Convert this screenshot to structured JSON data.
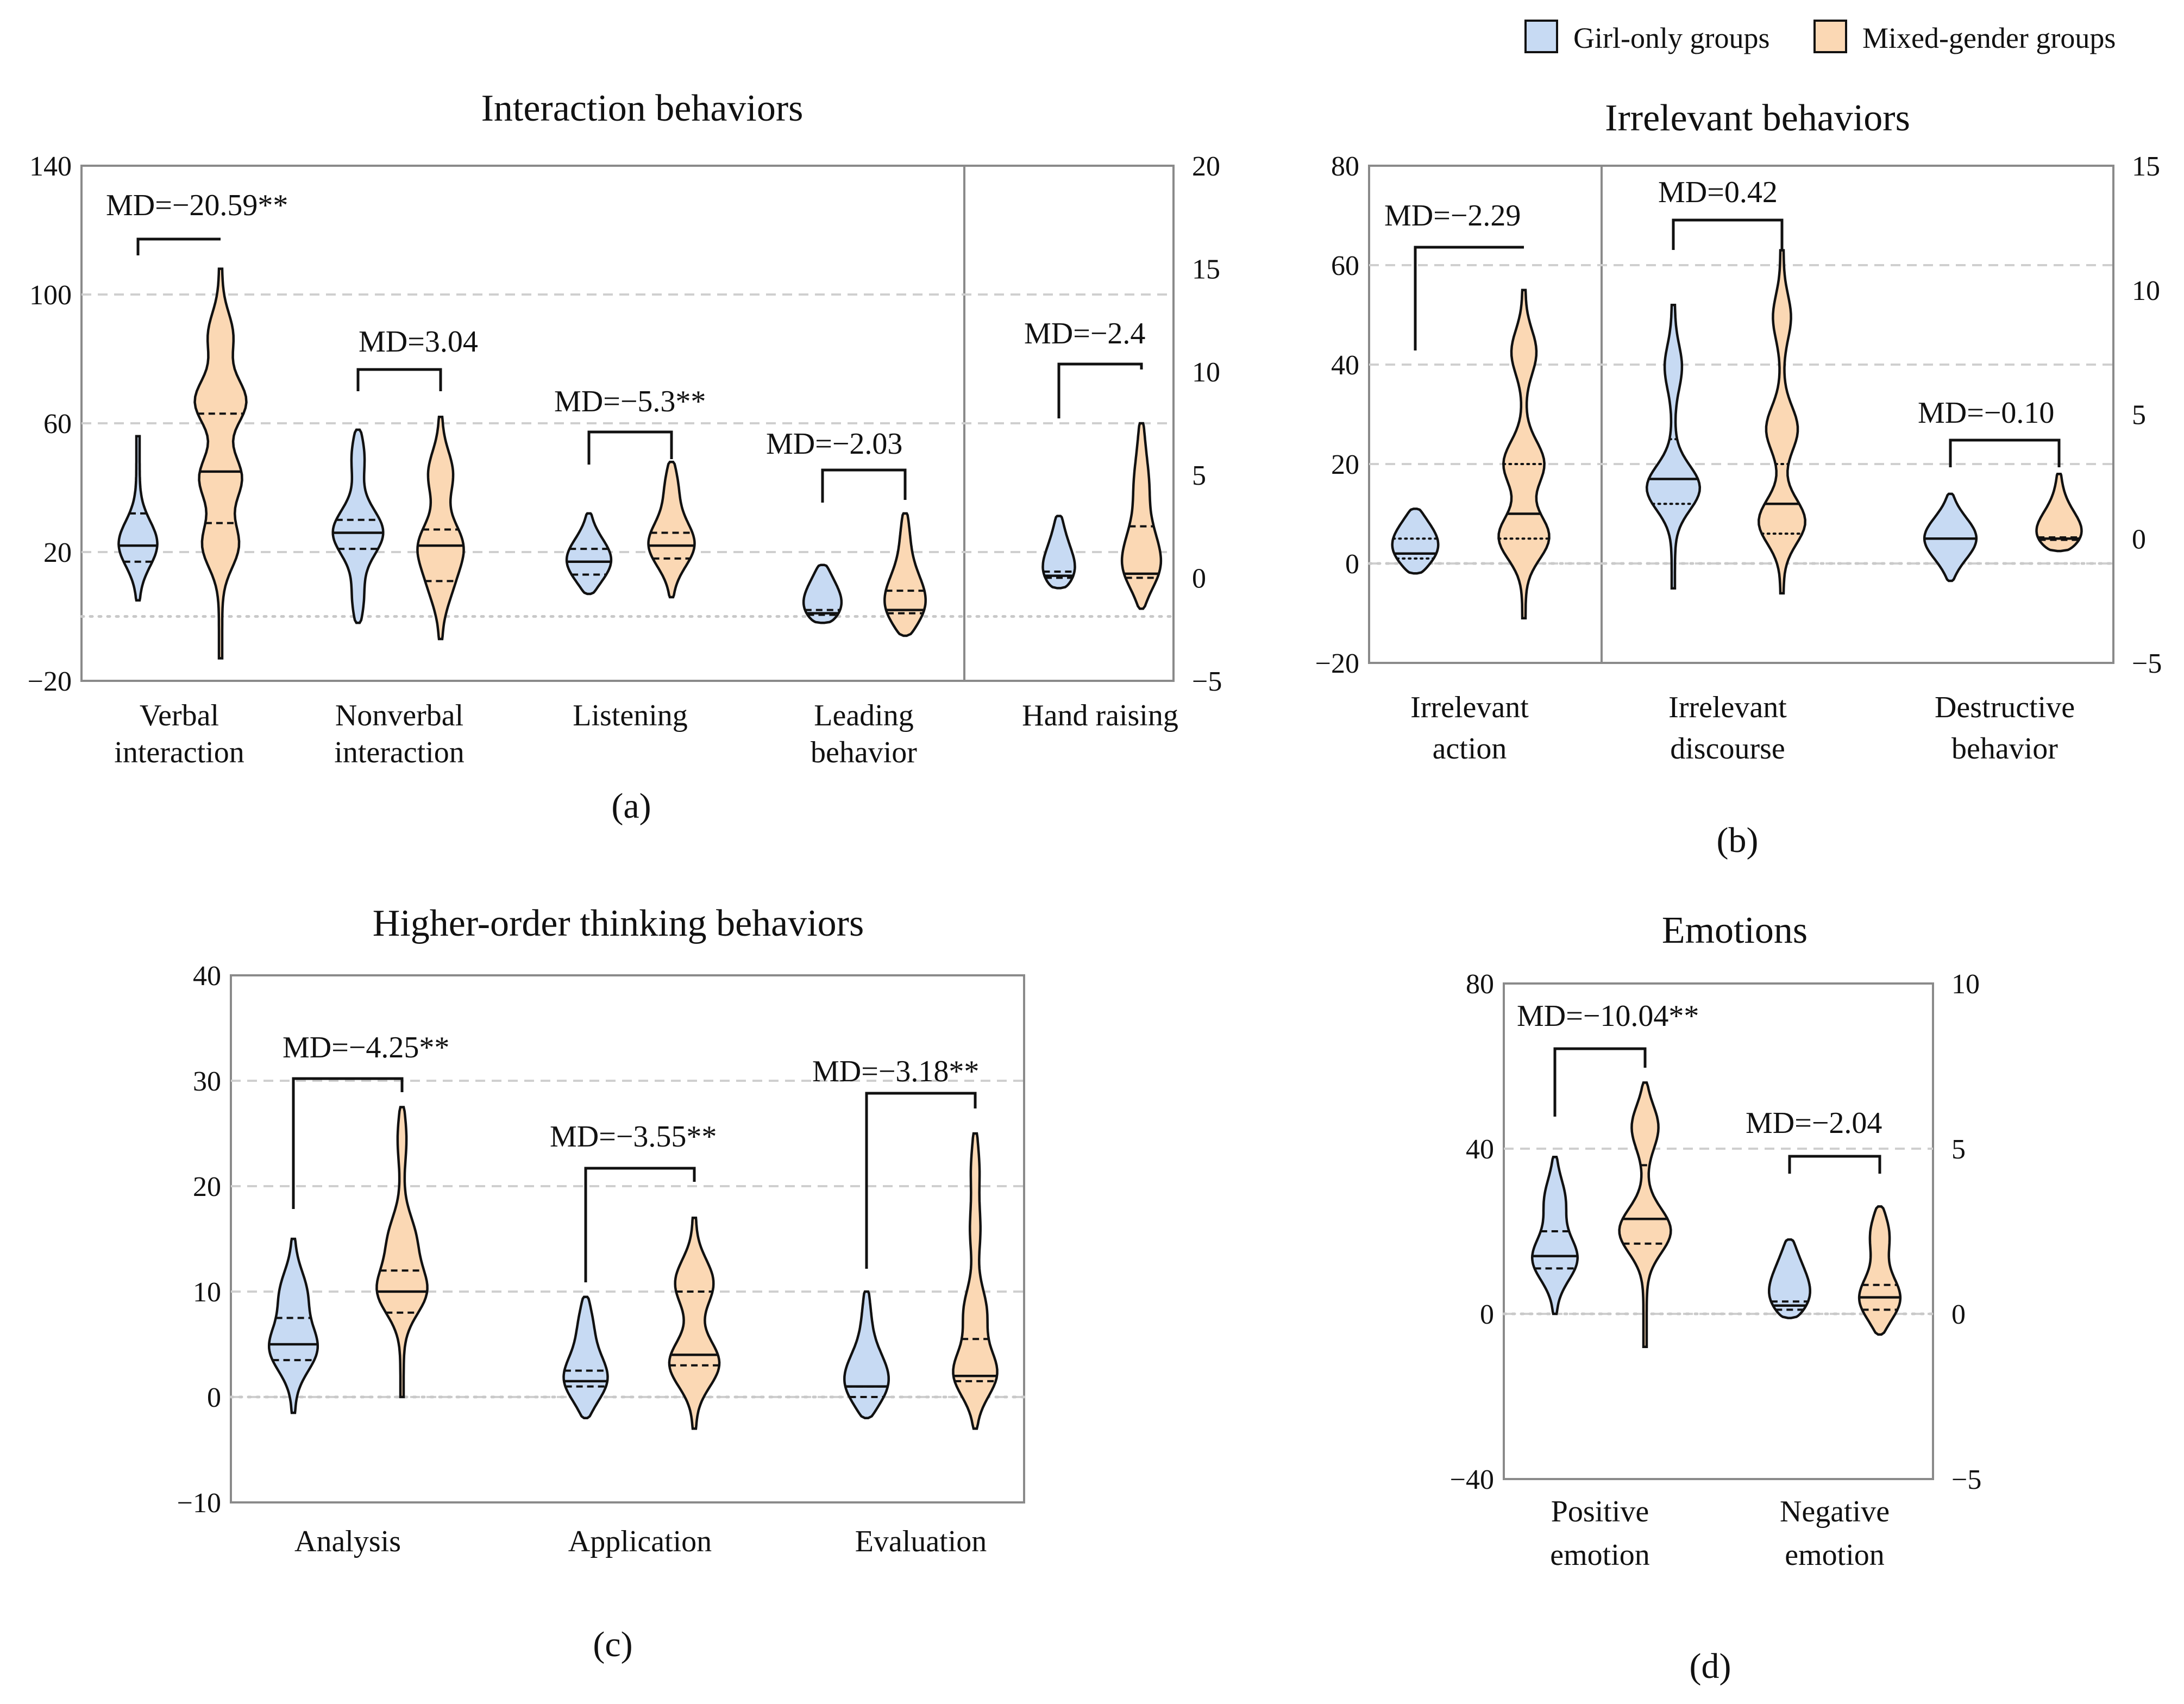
{
  "legend": {
    "girl": "Girl-only groups",
    "mixed": "Mixed-gender groups"
  },
  "colors": {
    "girl": "#c7daf3",
    "mixed": "#fbd8b4",
    "edge": "#111111"
  },
  "panel_labels": {
    "a": "(a)",
    "b": "(b)",
    "c": "(c)",
    "d": "(d)"
  },
  "chart_data": [
    {
      "id": "a",
      "type": "violin",
      "title": "Interaction behaviors",
      "ylim_left": [
        -20,
        140
      ],
      "yticks_left": [
        -20,
        20,
        60,
        100,
        140
      ],
      "ylim_right": [
        -5,
        20
      ],
      "yticks_right": [
        -5,
        0,
        5,
        10,
        15,
        20
      ],
      "categories": [
        {
          "label": [
            "Verbal",
            "interaction"
          ],
          "md": "MD=−20.59**",
          "axis": "left",
          "girl": {
            "min": 5,
            "max": 56,
            "median": 22,
            "q1": 17,
            "q3": 32,
            "qstyle": "dash",
            "bulges": [
              [
                22,
                1
              ]
            ],
            "width": 0.55
          },
          "mixed": {
            "min": -13,
            "max": 108,
            "median": 45,
            "q1": 29,
            "q3": 63,
            "qstyle": "dash",
            "bulges": [
              [
                22,
                0.72
              ],
              [
                43,
                0.78
              ],
              [
                67,
                1
              ],
              [
                88,
                0.55
              ]
            ],
            "width": 0.75
          }
        },
        {
          "label": [
            "Nonverbal",
            "interaction"
          ],
          "md": "MD=3.04",
          "axis": "left",
          "girl": {
            "min": -2,
            "max": 58,
            "median": 26,
            "q1": 21,
            "q3": 30,
            "qstyle": "dash",
            "bulges": [
              [
                4,
                0.25
              ],
              [
                26,
                1
              ],
              [
                51,
                0.28
              ]
            ],
            "width": 0.7
          },
          "mixed": {
            "min": -7,
            "max": 62,
            "median": 22,
            "q1": 11,
            "q3": 27,
            "qstyle": "dash",
            "bulges": [
              [
                9,
                0.5
              ],
              [
                22,
                1
              ],
              [
                45,
                0.62
              ]
            ],
            "width": 0.65
          }
        },
        {
          "label": [
            "Listening"
          ],
          "md": "MD=−5.3**",
          "axis": "left",
          "girl": {
            "min": 7,
            "max": 32,
            "median": 17,
            "q1": 13,
            "q3": 21,
            "qstyle": "dash",
            "bulges": [
              [
                17,
                1
              ]
            ],
            "width": 0.62
          },
          "mixed": {
            "min": 6,
            "max": 48,
            "median": 22,
            "q1": 18,
            "q3": 26,
            "qstyle": "dash",
            "bulges": [
              [
                22,
                1
              ],
              [
                41,
                0.28
              ]
            ],
            "width": 0.65
          }
        },
        {
          "label": [
            "Leading",
            "behavior"
          ],
          "md": "MD=−2.03",
          "axis": "left",
          "girl": {
            "min": -2,
            "max": 16,
            "median": 1,
            "q1": 0.5,
            "q3": 2,
            "qstyle": "dash",
            "bulges": [
              [
                1,
                1
              ],
              [
                9,
                0.2
              ],
              [
                14,
                0.15
              ]
            ],
            "width": 0.55
          },
          "mixed": {
            "min": -6,
            "max": 32,
            "median": 2,
            "q1": 1,
            "q3": 8,
            "qstyle": "dash",
            "bulges": [
              [
                1,
                1
              ],
              [
                10,
                0.5
              ],
              [
                26,
                0.2
              ]
            ],
            "width": 0.62
          }
        },
        {
          "label": [
            "Hand raising"
          ],
          "md": "MD=−2.4",
          "axis": "right",
          "girl": {
            "min": -0.5,
            "max": 3,
            "median": 0.1,
            "q1": 0,
            "q3": 0.3,
            "qstyle": "dash",
            "bulges": [
              [
                0.1,
                1
              ],
              [
                2.2,
                0.22
              ]
            ],
            "width": 0.48
          },
          "mixed": {
            "min": -1.5,
            "max": 7.5,
            "median": 0.2,
            "q1": 0,
            "q3": 2.5,
            "qstyle": "dash",
            "bulges": [
              [
                0.3,
                1
              ],
              [
                2,
                0.45
              ],
              [
                4.5,
                0.32
              ],
              [
                6.5,
                0.14
              ]
            ],
            "width": 0.6
          }
        }
      ]
    },
    {
      "id": "b",
      "type": "violin",
      "title": "Irrelevant behaviors",
      "ylim_left": [
        -20,
        80
      ],
      "yticks_left": [
        -20,
        0,
        20,
        40,
        60,
        80
      ],
      "ylim_right": [
        -5,
        15
      ],
      "yticks_right": [
        -5,
        0,
        5,
        10,
        15
      ],
      "categories": [
        {
          "label": [
            "Irrelevant",
            "action"
          ],
          "md": "MD=−2.29",
          "axis": "left",
          "girl": {
            "min": -2,
            "max": 11,
            "median": 2,
            "q1": 1,
            "q3": 5,
            "qstyle": "dot",
            "bulges": [
              [
                2,
                1
              ],
              [
                7,
                0.5
              ]
            ],
            "width": 0.6
          },
          "mixed": {
            "min": -11,
            "max": 55,
            "median": 10,
            "q1": 5,
            "q3": 20,
            "qstyle": "dot",
            "bulges": [
              [
                5,
                1
              ],
              [
                20,
                0.7
              ],
              [
                43,
                0.5
              ]
            ],
            "width": 0.75
          }
        },
        {
          "label": [
            "Irrelevant",
            "discourse"
          ],
          "md": "MD=0.42",
          "axis": "left",
          "girl": {
            "min": -5,
            "max": 52,
            "median": 17,
            "q1": 12,
            "q3": 25,
            "qstyle": "dot",
            "bulges": [
              [
                15,
                1
              ],
              [
                40,
                0.32
              ]
            ],
            "width": 0.72
          },
          "mixed": {
            "min": -6,
            "max": 63,
            "median": 12,
            "q1": 6,
            "q3": 20,
            "qstyle": "dot",
            "bulges": [
              [
                8,
                1
              ],
              [
                27,
                0.55
              ],
              [
                50,
                0.35
              ]
            ],
            "width": 0.72
          }
        },
        {
          "label": [
            "Destructive",
            "behavior"
          ],
          "md": "MD=−0.10",
          "axis": "right",
          "girl": {
            "min": -1.7,
            "max": 1.8,
            "median": 0,
            "q1": 0,
            "q3": 0,
            "qstyle": "none",
            "bulges": [
              [
                0,
                1
              ]
            ],
            "width": 0.68
          },
          "mixed": {
            "min": -0.5,
            "max": 2.6,
            "median": 0,
            "q1": -0.05,
            "q3": 0.05,
            "qstyle": "dash",
            "bulges": [
              [
                0,
                1
              ],
              [
                1.5,
                0.08
              ]
            ],
            "width": 0.68
          }
        }
      ]
    },
    {
      "id": "c",
      "type": "violin",
      "title": "Higher-order thinking behaviors",
      "ylim_left": [
        -10,
        40
      ],
      "yticks_left": [
        -10,
        0,
        10,
        20,
        30,
        40
      ],
      "categories": [
        {
          "label": [
            "Analysis"
          ],
          "md": "MD=−4.25**",
          "axis": "left",
          "girl": {
            "min": -1.5,
            "max": 15,
            "median": 5,
            "q1": 3.5,
            "q3": 7.5,
            "qstyle": "dash",
            "bulges": [
              [
                4.5,
                1
              ],
              [
                10,
                0.55
              ]
            ],
            "width": 0.65
          },
          "mixed": {
            "min": 0,
            "max": 27.5,
            "median": 10,
            "q1": 8,
            "q3": 12,
            "qstyle": "dash",
            "bulges": [
              [
                10,
                1
              ],
              [
                15,
                0.5
              ],
              [
                25,
                0.18
              ]
            ],
            "width": 0.68
          }
        },
        {
          "label": [
            "Application"
          ],
          "md": "MD=−3.55**",
          "axis": "left",
          "girl": {
            "min": -2,
            "max": 9.5,
            "median": 1.5,
            "q1": 1,
            "q3": 2.5,
            "qstyle": "dash",
            "bulges": [
              [
                1.5,
                1
              ],
              [
                7,
                0.3
              ]
            ],
            "width": 0.6
          },
          "mixed": {
            "min": -3,
            "max": 17,
            "median": 4,
            "q1": 3,
            "q3": 10,
            "qstyle": "dash",
            "bulges": [
              [
                3,
                1
              ],
              [
                11,
                0.75
              ]
            ],
            "width": 0.7
          }
        },
        {
          "label": [
            "Evaluation"
          ],
          "md": "MD=−3.18**",
          "axis": "left",
          "girl": {
            "min": -2,
            "max": 10,
            "median": 1,
            "q1": 0,
            "q3": 1,
            "qstyle": "dash",
            "bulges": [
              [
                0.5,
                1
              ],
              [
                3,
                0.55
              ],
              [
                8,
                0.18
              ]
            ],
            "width": 0.62
          },
          "mixed": {
            "min": -3,
            "max": 25,
            "median": 2,
            "q1": 1.5,
            "q3": 5.5,
            "qstyle": "dash",
            "bulges": [
              [
                2,
                1
              ],
              [
                8,
                0.4
              ],
              [
                16,
                0.15
              ],
              [
                22,
                0.15
              ]
            ],
            "width": 0.7
          }
        }
      ]
    },
    {
      "id": "d",
      "type": "violin",
      "title": "Emotions",
      "ylim_left": [
        -40,
        80
      ],
      "yticks_left": [
        -40,
        0,
        40,
        80
      ],
      "ylim_right": [
        -5,
        10
      ],
      "yticks_right": [
        -5,
        0,
        5,
        10
      ],
      "categories": [
        {
          "label": [
            "Positive",
            "emotion"
          ],
          "md": "MD=−10.04**",
          "axis": "left",
          "girl": {
            "min": 0,
            "max": 38,
            "median": 14,
            "q1": 11,
            "q3": 20,
            "qstyle": "dash",
            "bulges": [
              [
                13,
                1
              ],
              [
                28,
                0.45
              ]
            ],
            "width": 0.65
          },
          "mixed": {
            "min": -8,
            "max": 56,
            "median": 23,
            "q1": 17,
            "q3": 36,
            "qstyle": "dash",
            "bulges": [
              [
                20,
                1
              ],
              [
                46,
                0.62
              ]
            ],
            "width": 0.72
          }
        },
        {
          "label": [
            "Negative",
            "emotion"
          ],
          "md": "MD=−2.04",
          "axis": "left",
          "girl": {
            "min": -1,
            "max": 18,
            "median": 2,
            "q1": 1,
            "q3": 3,
            "qstyle": "dash",
            "bulges": [
              [
                2,
                1
              ],
              [
                9,
                0.5
              ],
              [
                16,
                0.2
              ]
            ],
            "width": 0.6
          },
          "mixed": {
            "min": -5,
            "max": 26,
            "median": 4,
            "q1": 1,
            "q3": 7,
            "qstyle": "dash",
            "bulges": [
              [
                3,
                1
              ],
              [
                20,
                0.45
              ]
            ],
            "width": 0.62
          }
        }
      ]
    }
  ]
}
